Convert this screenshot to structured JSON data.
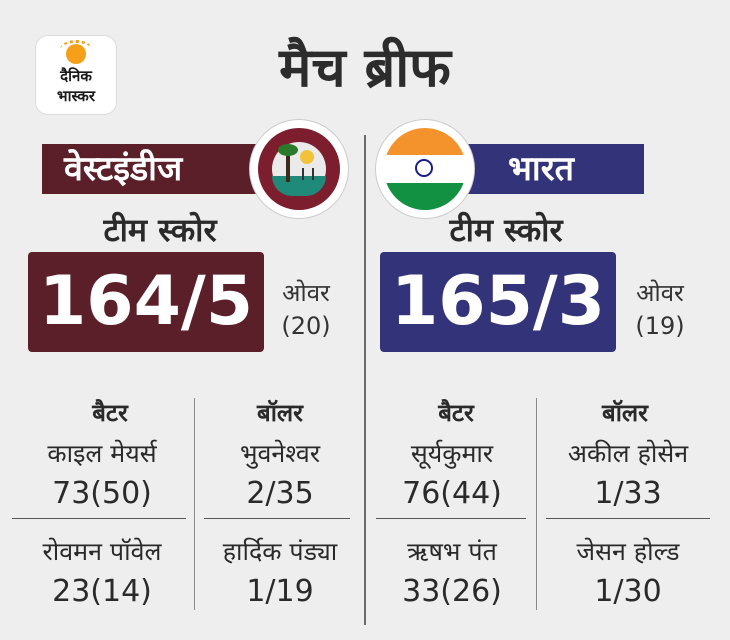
{
  "logo": {
    "line1": "दैनिक",
    "line2": "भास्कर"
  },
  "title": "मैच ब्रीफ",
  "west_indies": {
    "name": "वेस्टइंडीज",
    "team_score_label": "टीम स्कोर",
    "score": "164/5",
    "overs_label": "ओवर",
    "overs": "(20)",
    "batter_header": "बैटर",
    "bowler_header": "बॉलर",
    "batters": [
      {
        "name": "काइल मेयर्स",
        "stat": "73(50)"
      },
      {
        "name": "रोवमन पॉवेल",
        "stat": "23(14)"
      }
    ],
    "bowlers": [
      {
        "name": "भुवनेश्वर",
        "stat": "2/35"
      },
      {
        "name": "हार्दिक पंड्या",
        "stat": "1/19"
      }
    ],
    "color": "#5b1f2a"
  },
  "india": {
    "name": "भारत",
    "team_score_label": "टीम स्कोर",
    "score": "165/3",
    "overs_label": "ओवर",
    "overs": "(19)",
    "batter_header": "बैटर",
    "bowler_header": "बॉलर",
    "batters": [
      {
        "name": "सूर्यकुमार",
        "stat": "76(44)"
      },
      {
        "name": "ऋषभ पंत",
        "stat": "33(26)"
      }
    ],
    "bowlers": [
      {
        "name": "अकील होसेन",
        "stat": "1/33"
      },
      {
        "name": "जेसन होल्ड",
        "stat": "1/30"
      }
    ],
    "color": "#33337a"
  }
}
